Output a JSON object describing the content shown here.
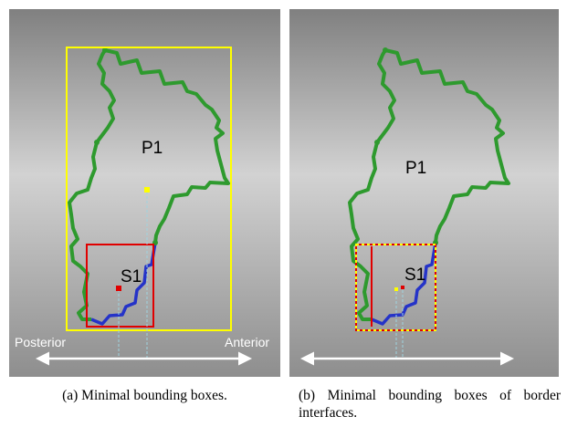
{
  "panels": [
    {
      "labels": {
        "region": "P1",
        "subregion": "S1",
        "left_direction": "Posterior",
        "right_direction": "Anterior"
      },
      "caption": "(a) Minimal bounding boxes."
    },
    {
      "labels": {
        "region": "P1",
        "subregion": "S1"
      },
      "caption": "(b) Minimal bounding boxes of border interfaces."
    }
  ]
}
